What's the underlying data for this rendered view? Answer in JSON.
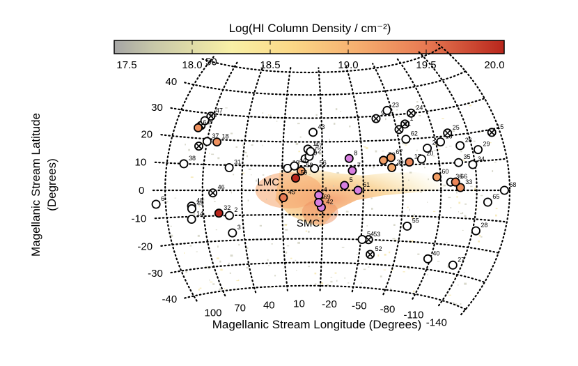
{
  "chart_data": {
    "type": "scatter",
    "title": "",
    "colorbar": {
      "label": "Log(HI Column Density / cm⁻²)",
      "ticks": [
        "17.5",
        "18.0",
        "18.5",
        "19.0",
        "19.5",
        "20.0"
      ],
      "range": [
        17.5,
        20.0
      ]
    },
    "xlabel": "Magellanic Stream Longitude (Degrees)",
    "ylabel": "Magellanic Stream Latitude (Degrees)",
    "x_tick_labels": [
      {
        "text": "100",
        "l": 100
      },
      {
        "text": "70",
        "l": 70
      },
      {
        "text": "40",
        "l": 40
      },
      {
        "text": "10",
        "l": 10
      },
      {
        "text": "-20",
        "l": -20
      },
      {
        "text": "-50",
        "l": -50
      },
      {
        "text": "-80",
        "l": -80
      },
      {
        "text": "-110",
        "l": -110
      },
      {
        "text": "-140",
        "l": -140
      }
    ],
    "y_tick_labels": [
      {
        "text": "50",
        "b": 50
      },
      {
        "text": "40",
        "b": 40
      },
      {
        "text": "30",
        "b": 30
      },
      {
        "text": "20",
        "b": 20
      },
      {
        "text": "10",
        "b": 10
      },
      {
        "text": "0",
        "b": 0
      },
      {
        "text": "-10",
        "b": -10
      },
      {
        "text": "-20",
        "b": -20
      },
      {
        "text": "-30",
        "b": -30
      },
      {
        "text": "-40",
        "b": -40
      }
    ],
    "annotations": [
      {
        "text": "LMC",
        "l": 22,
        "b": 2
      },
      {
        "text": "SMC",
        "l": -8,
        "b": -15
      }
    ],
    "sightline_types": {
      "nondetection": "open circle",
      "absorption_no_emission": "crossed circle",
      "detection": "filled circle (colored by log N)"
    },
    "points": [
      {
        "id": "1",
        "l": -78,
        "b": 26,
        "type": "cross",
        "logN": null
      },
      {
        "id": "2",
        "l": 60,
        "b": -10,
        "type": "open",
        "logN": null
      },
      {
        "id": "3",
        "l": 59,
        "b": -17,
        "type": "open",
        "logN": null
      },
      {
        "id": "4",
        "l": -7,
        "b": -2,
        "type": "fill",
        "logN": 18.9
      },
      {
        "id": "5",
        "l": -26,
        "b": 2,
        "type": "fill",
        "logN": 19.0
      },
      {
        "id": "6",
        "l": 118,
        "b": -5,
        "type": "open",
        "logN": null
      },
      {
        "id": "7",
        "l": -32,
        "b": 8,
        "type": "fill",
        "logN": 18.9
      },
      {
        "id": "8",
        "l": -30,
        "b": 13,
        "type": "fill",
        "logN": 18.9
      },
      {
        "id": "9",
        "l": -55,
        "b": 29,
        "type": "cross",
        "logN": null
      },
      {
        "id": "10",
        "l": 3,
        "b": 13,
        "type": "open",
        "logN": null
      },
      {
        "id": "11",
        "l": 1,
        "b": 17,
        "type": "open",
        "logN": null
      },
      {
        "id": "12",
        "l": 0,
        "b": 14,
        "type": "open",
        "logN": null
      },
      {
        "id": "13",
        "l": 88,
        "b": 25,
        "type": "cross",
        "logN": null
      },
      {
        "id": "14",
        "l": 90,
        "b": -11,
        "type": "open",
        "logN": null
      },
      {
        "id": "15",
        "l": -152,
        "b": 19,
        "type": "cross",
        "logN": null
      },
      {
        "id": "16",
        "l": -104,
        "b": 18,
        "type": "open",
        "logN": null
      },
      {
        "id": "17",
        "l": -76,
        "b": 11,
        "type": "fill",
        "logN": 19.4
      },
      {
        "id": "18",
        "l": 72,
        "b": 19,
        "type": "fill",
        "logN": 19.3
      },
      {
        "id": "19",
        "l": 16,
        "b": 9,
        "type": "open",
        "logN": null
      },
      {
        "id": "20",
        "l": -86,
        "b": 12,
        "type": "open",
        "logN": null
      },
      {
        "id": "21",
        "l": -92,
        "b": 16,
        "type": "open",
        "logN": null
      },
      {
        "id": "22",
        "l": 86,
        "b": 17,
        "type": "cross",
        "logN": null
      },
      {
        "id": "23",
        "l": -66,
        "b": 32,
        "type": "open",
        "logN": null
      },
      {
        "id": "24",
        "l": -86,
        "b": 30,
        "type": "cross",
        "logN": null
      },
      {
        "id": "25",
        "l": -112,
        "b": 21,
        "type": "cross",
        "logN": null
      },
      {
        "id": "26",
        "l": -120,
        "b": 16,
        "type": "open",
        "logN": null
      },
      {
        "id": "27",
        "l": -122,
        "b": -27,
        "type": "open",
        "logN": null
      },
      {
        "id": "28",
        "l": -133,
        "b": -14,
        "type": "open",
        "logN": null
      },
      {
        "id": "29",
        "l": -135,
        "b": 14,
        "type": "open",
        "logN": null
      },
      {
        "id": "30",
        "l": -62,
        "b": 9,
        "type": "fill",
        "logN": 19.1
      },
      {
        "id": "31",
        "l": 60,
        "b": 9,
        "type": "open",
        "logN": null
      },
      {
        "id": "32",
        "l": 68,
        "b": -9,
        "type": "fill",
        "logN": 20.0
      },
      {
        "id": "33",
        "l": -116,
        "b": 1,
        "type": "fill",
        "logN": 19.3
      },
      {
        "id": "34",
        "l": -128,
        "b": 9,
        "type": "open",
        "logN": null
      },
      {
        "id": "35",
        "l": -116,
        "b": 10,
        "type": "open",
        "logN": null
      },
      {
        "id": "36",
        "l": -108,
        "b": 3,
        "type": "open",
        "logN": null
      },
      {
        "id": "37",
        "l": 80,
        "b": 19,
        "type": "open",
        "logN": null
      },
      {
        "id": "38",
        "l": 96,
        "b": 10,
        "type": "open",
        "logN": null
      },
      {
        "id": "40",
        "l": -98,
        "b": -26,
        "type": "open",
        "logN": null
      },
      {
        "id": "42",
        "l": -9,
        "b": -7,
        "type": "fill",
        "logN": 18.9
      },
      {
        "id": "43",
        "l": -3,
        "b": 24,
        "type": "open",
        "logN": null
      },
      {
        "id": "44",
        "l": 11,
        "b": 10,
        "type": "open",
        "logN": null
      },
      {
        "id": "45",
        "l": 19,
        "b": -3,
        "type": "fill",
        "logN": 19.5
      },
      {
        "id": "46",
        "l": 72,
        "b": -1,
        "type": "cross",
        "logN": null
      },
      {
        "id": "47",
        "l": 82,
        "b": 29,
        "type": "cross",
        "logN": null
      },
      {
        "id": "48",
        "l": 89,
        "b": -6,
        "type": "open",
        "logN": null
      },
      {
        "id": "49",
        "l": 89,
        "b": -7,
        "type": "open",
        "logN": null
      },
      {
        "id": "50",
        "l": -56,
        "b": 12,
        "type": "fill",
        "logN": 19.2
      },
      {
        "id": "51",
        "l": -36,
        "b": 0,
        "type": "fill",
        "logN": 19.0
      },
      {
        "id": "52",
        "l": -49,
        "b": -26,
        "type": "cross",
        "logN": null
      },
      {
        "id": "53",
        "l": -46,
        "b": -20,
        "type": "cross",
        "logN": null
      },
      {
        "id": "54",
        "l": -41,
        "b": -20,
        "type": "open",
        "logN": null
      },
      {
        "id": "55",
        "l": -75,
        "b": -14,
        "type": "open",
        "logN": null
      },
      {
        "id": "56",
        "l": -4,
        "b": 9,
        "type": "open",
        "logN": null
      },
      {
        "id": "57",
        "l": -1,
        "b": 16,
        "type": "open",
        "logN": null
      },
      {
        "id": "58",
        "l": 6,
        "b": 8,
        "type": "fill",
        "logN": 19.2
      },
      {
        "id": "59",
        "l": 10,
        "b": 5,
        "type": "fill",
        "logN": 20.0
      },
      {
        "id": "60",
        "l": -97,
        "b": 5,
        "type": "fill",
        "logN": 19.2
      },
      {
        "id": "61",
        "l": -72,
        "b": 24,
        "type": "cross",
        "logN": null
      },
      {
        "id": "62",
        "l": -76,
        "b": 20,
        "type": "open",
        "logN": null
      },
      {
        "id": "63",
        "l": 86,
        "b": 27,
        "type": "open",
        "logN": null
      },
      {
        "id": "64",
        "l": 90,
        "b": 24,
        "type": "fill",
        "logN": 19.3
      },
      {
        "id": "65",
        "l": -140,
        "b": -4,
        "type": "open",
        "logN": null
      },
      {
        "id": "66",
        "l": -112,
        "b": 3,
        "type": "fill",
        "logN": 19.4
      },
      {
        "id": "67",
        "l": -62,
        "b": 13,
        "type": "fill",
        "logN": 19.2
      },
      {
        "id": "68",
        "l": -155,
        "b": 0,
        "type": "open",
        "logN": null
      },
      {
        "id": "69",
        "l": -7,
        "b": -5,
        "type": "fill",
        "logN": 18.9
      }
    ]
  }
}
